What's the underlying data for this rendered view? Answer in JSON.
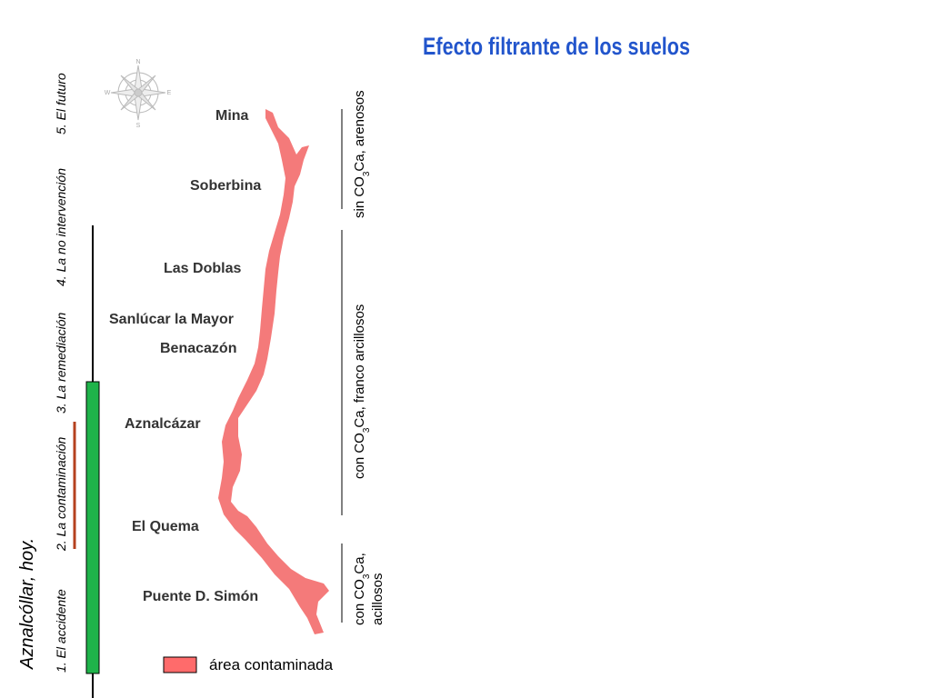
{
  "header": {
    "title": "Efecto filtrante de los suelos"
  },
  "sidebar": {
    "title": "Aznalcóllar, hoy.",
    "menu": [
      "1. El accidente",
      "2. La contaminación",
      "3. La remediación",
      "4. La no intervención",
      "5. El futuro"
    ]
  },
  "compass": [
    "N",
    "S",
    "E",
    "W"
  ],
  "places": [
    "Mina",
    "Soberbina",
    "Las Doblas",
    "Sanlúcar la Mayor",
    "Benacazón",
    "Aznalcázar",
    "El Quema",
    "Puente D. Simón"
  ],
  "soils": [
    {
      "prefix": "sin CO",
      "sub": "3",
      "suffix": "Ca, arenosos"
    },
    {
      "prefix": "con CO",
      "sub": "3",
      "suffix": "Ca, franco arcillosos"
    },
    {
      "prefix": "con CO",
      "sub": "3",
      "suffix": "Ca,",
      "line2": "acillosos"
    }
  ],
  "legend": {
    "label": "área contaminada"
  }
}
